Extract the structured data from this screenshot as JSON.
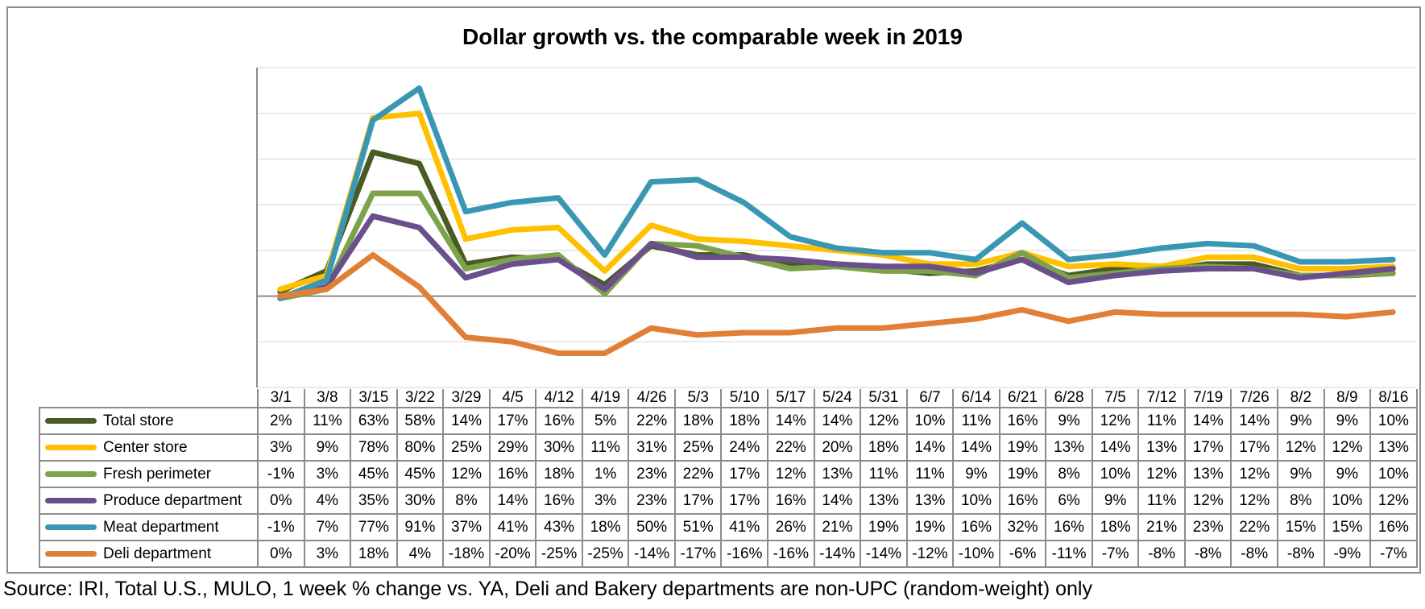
{
  "chart_data": {
    "type": "line",
    "title": "Dollar growth vs. the comparable week in 2019",
    "categories": [
      "3/1",
      "3/8",
      "3/15",
      "3/22",
      "3/29",
      "4/5",
      "4/12",
      "4/19",
      "4/26",
      "5/3",
      "5/10",
      "5/17",
      "5/24",
      "5/31",
      "6/7",
      "6/14",
      "6/21",
      "6/28",
      "7/5",
      "7/12",
      "7/19",
      "7/26",
      "8/2",
      "8/9",
      "8/16"
    ],
    "ylim": [
      -40,
      100
    ],
    "grid": true,
    "legend": "data table",
    "series": [
      {
        "name": "Total store",
        "color": "#4a5a23",
        "values": [
          2,
          11,
          63,
          58,
          14,
          17,
          16,
          5,
          22,
          18,
          18,
          14,
          14,
          12,
          10,
          11,
          16,
          9,
          12,
          11,
          14,
          14,
          9,
          9,
          10
        ]
      },
      {
        "name": "Center store",
        "color": "#ffc000",
        "values": [
          3,
          9,
          78,
          80,
          25,
          29,
          30,
          11,
          31,
          25,
          24,
          22,
          20,
          18,
          14,
          14,
          19,
          13,
          14,
          13,
          17,
          17,
          12,
          12,
          13
        ]
      },
      {
        "name": "Fresh perimeter",
        "color": "#7da24a",
        "values": [
          -1,
          3,
          45,
          45,
          12,
          16,
          18,
          1,
          23,
          22,
          17,
          12,
          13,
          11,
          11,
          9,
          19,
          8,
          10,
          12,
          13,
          12,
          9,
          9,
          10
        ]
      },
      {
        "name": "Produce department",
        "color": "#6a4f8c",
        "values": [
          0,
          4,
          35,
          30,
          8,
          14,
          16,
          3,
          23,
          17,
          17,
          16,
          14,
          13,
          13,
          10,
          16,
          6,
          9,
          11,
          12,
          12,
          8,
          10,
          12
        ]
      },
      {
        "name": "Meat department",
        "color": "#3a97b4",
        "values": [
          -1,
          7,
          77,
          91,
          37,
          41,
          43,
          18,
          50,
          51,
          41,
          26,
          21,
          19,
          19,
          16,
          32,
          16,
          18,
          21,
          23,
          22,
          15,
          15,
          16
        ]
      },
      {
        "name": "Deli department",
        "color": "#e27f36",
        "values": [
          0,
          3,
          18,
          4,
          -18,
          -20,
          -25,
          -25,
          -14,
          -17,
          -16,
          -16,
          -14,
          -14,
          -12,
          -10,
          -6,
          -11,
          -7,
          -8,
          -8,
          -8,
          -8,
          -9,
          -7
        ]
      }
    ]
  },
  "source": "Source: IRI, Total U.S., MULO, 1 week % change vs. YA, Deli and Bakery departments are non-UPC (random-weight) only"
}
